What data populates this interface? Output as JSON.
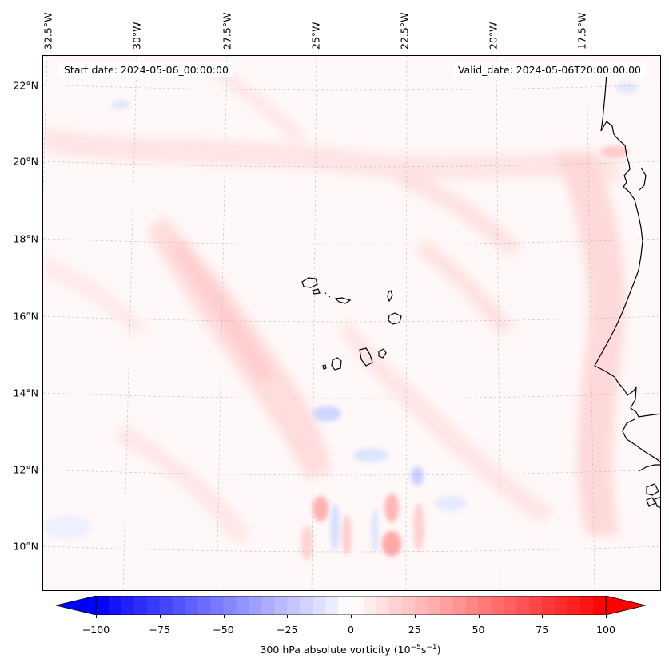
{
  "header": {
    "start_date": "Start date: 2024-05-06_00:00:00",
    "valid_date": "Valid_date: 2024-05-06T20:00:00.00"
  },
  "longitude_labels": [
    "32.5°W",
    "30°W",
    "27.5°W",
    "25°W",
    "22.5°W",
    "20°W",
    "17.5°W"
  ],
  "latitude_labels": [
    "22°N",
    "20°N",
    "18°N",
    "16°N",
    "14°N",
    "12°N",
    "10°N"
  ],
  "colorbar": {
    "label_prefix": "300 hPa absolute vorticity (10",
    "label_exp1": "−5",
    "label_mid": "s",
    "label_exp2": "−1",
    "label_suffix": ")",
    "ticks": [
      "−100",
      "−75",
      "−50",
      "−25",
      "0",
      "25",
      "50",
      "75",
      "100"
    ],
    "min": -100,
    "max": 100,
    "low_color": "#0000ff",
    "mid_color": "#ffffff",
    "high_color": "#ff0000"
  },
  "colors": {
    "coastline": "#000000",
    "gridline": "#bbbbbb",
    "weak_positive": "#ffe3e3",
    "moderate_positive": "#ffcfcf",
    "weak_negative": "#e8ecff"
  }
}
